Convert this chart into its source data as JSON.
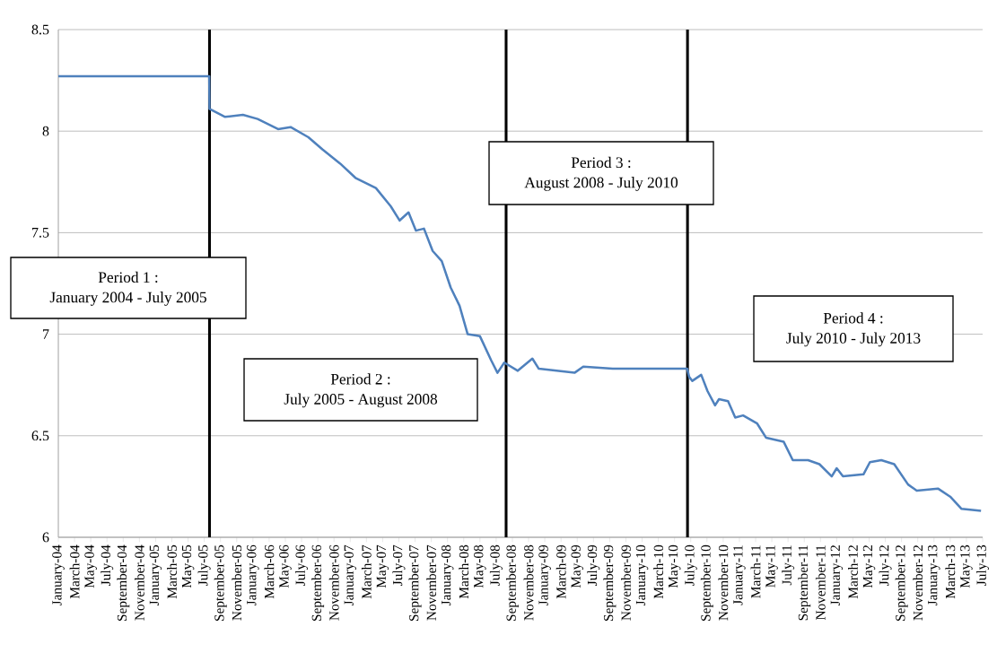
{
  "chart_data": {
    "type": "line",
    "x": [
      "2004-01-01",
      "2005-07-20",
      "2005-07-21",
      "2005-09-18",
      "2005-11-24",
      "2006-01-19",
      "2006-04-04",
      "2006-05-21",
      "2006-07-27",
      "2006-09-18",
      "2006-11-24",
      "2007-01-21",
      "2007-04-06",
      "2007-06-01",
      "2007-07-04",
      "2007-08-07",
      "2007-09-04",
      "2007-10-04",
      "2007-11-06",
      "2007-12-10",
      "2008-01-13",
      "2008-02-15",
      "2008-03-16",
      "2008-05-01",
      "2008-06-13",
      "2008-07-06",
      "2008-08-01",
      "2008-09-21",
      "2008-11-15",
      "2008-12-09",
      "2009-04-21",
      "2009-05-24",
      "2009-09-12",
      "2010-02-27",
      "2010-06-18",
      "2010-06-25",
      "2010-07-07",
      "2010-08-10",
      "2010-09-03",
      "2010-10-01",
      "2010-10-16",
      "2010-11-19",
      "2010-12-16",
      "2011-01-15",
      "2011-03-07",
      "2011-04-10",
      "2011-06-15",
      "2011-07-19",
      "2011-09-15",
      "2011-10-28",
      "2011-12-13",
      "2012-01-01",
      "2012-01-25",
      "2012-04-10",
      "2012-05-04",
      "2012-06-16",
      "2012-08-04",
      "2012-09-25",
      "2012-10-28",
      "2013-01-16",
      "2013-03-01",
      "2013-04-13",
      "2013-06-25"
    ],
    "series": [
      {
        "color": "#4f81bd",
        "values": [
          8.27,
          8.27,
          8.11,
          8.07,
          8.08,
          8.06,
          8.01,
          8.02,
          7.97,
          7.91,
          7.84,
          7.77,
          7.72,
          7.63,
          7.56,
          7.6,
          7.51,
          7.52,
          7.41,
          7.36,
          7.23,
          7.14,
          7.0,
          6.99,
          6.87,
          6.81,
          6.86,
          6.82,
          6.88,
          6.83,
          6.81,
          6.84,
          6.83,
          6.83,
          6.83,
          6.79,
          6.77,
          6.8,
          6.72,
          6.65,
          6.68,
          6.67,
          6.59,
          6.6,
          6.56,
          6.49,
          6.47,
          6.38,
          6.38,
          6.36,
          6.3,
          6.34,
          6.3,
          6.31,
          6.37,
          6.38,
          6.36,
          6.26,
          6.23,
          6.24,
          6.2,
          6.14,
          6.13
        ]
      }
    ],
    "xlim": [
      "2004-01-01",
      "2013-07-01"
    ],
    "xticks": [
      {
        "value": "2004-01-01",
        "label": "January-04"
      },
      {
        "value": "2004-03-01",
        "label": "March-04"
      },
      {
        "value": "2004-05-01",
        "label": "May-04"
      },
      {
        "value": "2004-07-01",
        "label": "July-04"
      },
      {
        "value": "2004-09-01",
        "label": "September-04"
      },
      {
        "value": "2004-11-01",
        "label": "November-04"
      },
      {
        "value": "2005-01-01",
        "label": "January-05"
      },
      {
        "value": "2005-03-01",
        "label": "March-05"
      },
      {
        "value": "2005-05-01",
        "label": "May-05"
      },
      {
        "value": "2005-07-01",
        "label": "July-05"
      },
      {
        "value": "2005-09-01",
        "label": "September-05"
      },
      {
        "value": "2005-11-01",
        "label": "November-05"
      },
      {
        "value": "2006-01-01",
        "label": "January-06"
      },
      {
        "value": "2006-03-01",
        "label": "March-06"
      },
      {
        "value": "2006-05-01",
        "label": "May-06"
      },
      {
        "value": "2006-07-01",
        "label": "July-06"
      },
      {
        "value": "2006-09-01",
        "label": "September-06"
      },
      {
        "value": "2006-11-01",
        "label": "November-06"
      },
      {
        "value": "2007-01-01",
        "label": "January-07"
      },
      {
        "value": "2007-03-01",
        "label": "March-07"
      },
      {
        "value": "2007-05-01",
        "label": "May-07"
      },
      {
        "value": "2007-07-01",
        "label": "July-07"
      },
      {
        "value": "2007-09-01",
        "label": "September-07"
      },
      {
        "value": "2007-11-01",
        "label": "November-07"
      },
      {
        "value": "2008-01-01",
        "label": "January-08"
      },
      {
        "value": "2008-03-01",
        "label": "March-08"
      },
      {
        "value": "2008-05-01",
        "label": "May-08"
      },
      {
        "value": "2008-07-01",
        "label": "July-08"
      },
      {
        "value": "2008-09-01",
        "label": "September-08"
      },
      {
        "value": "2008-11-01",
        "label": "November-08"
      },
      {
        "value": "2009-01-01",
        "label": "January-09"
      },
      {
        "value": "2009-03-01",
        "label": "March-09"
      },
      {
        "value": "2009-05-01",
        "label": "May-09"
      },
      {
        "value": "2009-07-01",
        "label": "July-09"
      },
      {
        "value": "2009-09-01",
        "label": "September-09"
      },
      {
        "value": "2009-11-01",
        "label": "November-09"
      },
      {
        "value": "2010-01-01",
        "label": "January-10"
      },
      {
        "value": "2010-03-01",
        "label": "March-10"
      },
      {
        "value": "2010-05-01",
        "label": "May-10"
      },
      {
        "value": "2010-07-01",
        "label": "July-10"
      },
      {
        "value": "2010-09-01",
        "label": "September-10"
      },
      {
        "value": "2010-11-01",
        "label": "November-10"
      },
      {
        "value": "2011-01-01",
        "label": "January-11"
      },
      {
        "value": "2011-03-01",
        "label": "March-11"
      },
      {
        "value": "2011-05-01",
        "label": "May-11"
      },
      {
        "value": "2011-07-01",
        "label": "July-11"
      },
      {
        "value": "2011-09-01",
        "label": "September-11"
      },
      {
        "value": "2011-11-01",
        "label": "November-11"
      },
      {
        "value": "2012-01-01",
        "label": "January-12"
      },
      {
        "value": "2012-03-01",
        "label": "March-12"
      },
      {
        "value": "2012-05-01",
        "label": "May-12"
      },
      {
        "value": "2012-07-01",
        "label": "July-12"
      },
      {
        "value": "2012-09-01",
        "label": "September-12"
      },
      {
        "value": "2012-11-01",
        "label": "November-12"
      },
      {
        "value": "2013-01-01",
        "label": "January-13"
      },
      {
        "value": "2013-03-01",
        "label": "March-13"
      },
      {
        "value": "2013-05-01",
        "label": "May-13"
      },
      {
        "value": "2013-07-01",
        "label": "July-13"
      }
    ],
    "ylim": [
      6,
      8.5
    ],
    "yticks": [
      6,
      6.5,
      7,
      7.5,
      8,
      8.5
    ],
    "grid": "y",
    "marker": "none",
    "line_style": "solid",
    "ref_lines": [
      {
        "axis": "x",
        "value": "2005-07-21",
        "color": "#000000"
      },
      {
        "axis": "x",
        "value": "2008-08-08",
        "color": "#000000"
      },
      {
        "axis": "x",
        "value": "2010-06-19",
        "color": "#000000"
      }
    ],
    "annotations": [
      "Period 1 :",
      "January 2004  - July 2005",
      "Period 2 :",
      "July 2005 - August 2008",
      "Period 3 :",
      "August 2008 - July 2010",
      "Period 4 :",
      "July 2010 - July 2013"
    ]
  }
}
